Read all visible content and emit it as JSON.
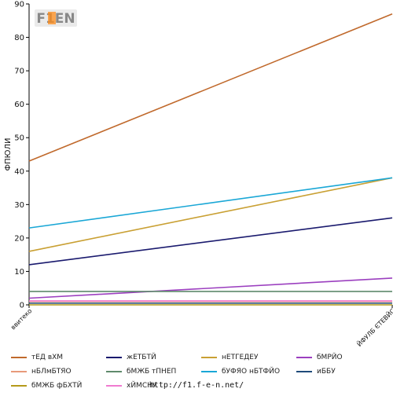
{
  "logo_text": "F1EN",
  "source_url": "http://f1.f-e-n.net/",
  "chart_data": {
    "type": "line",
    "title": "",
    "xlabel": "",
    "ylabel": "ФПЮЛИ",
    "categories": [
      "ввитеко",
      "ЙФУЛБ ЄТЕВЙС"
    ],
    "ylim": [
      0,
      90
    ],
    "yticks": [
      0,
      10,
      20,
      30,
      40,
      50,
      60,
      70,
      80,
      90
    ],
    "grid": false,
    "legend_position": "bottom",
    "series": [
      {
        "name": "тЕД вХМ",
        "color": "#c0692c",
        "values": [
          43,
          87
        ]
      },
      {
        "name": "жЕТБТЙ",
        "color": "#1a1a6e",
        "values": [
          12,
          26
        ]
      },
      {
        "name": "нЕТГЕДЕУ",
        "color": "#c9a033",
        "values": [
          16,
          38
        ]
      },
      {
        "name": "бМРЙО",
        "color": "#9b3fbf",
        "values": [
          2,
          8
        ]
      },
      {
        "name": "нБЛмБТЯО",
        "color": "#e89a7a",
        "values": [
          1,
          1
        ]
      },
      {
        "name": "бМЖБ тПНЕП",
        "color": "#5f8a6c",
        "values": [
          4,
          4
        ]
      },
      {
        "name": "бУФЯО нБТФЙО",
        "color": "#1aa7d6",
        "values": [
          23,
          38
        ]
      },
      {
        "name": "иББУ",
        "color": "#1f4b7a",
        "values": [
          0.5,
          0.5
        ]
      },
      {
        "name": "бМЖБ фБХТЙ",
        "color": "#b59a1a",
        "values": [
          0,
          0
        ]
      },
      {
        "name": "хЙМСНУ",
        "color": "#f07bd0",
        "values": [
          1.2,
          1.2
        ]
      }
    ]
  }
}
